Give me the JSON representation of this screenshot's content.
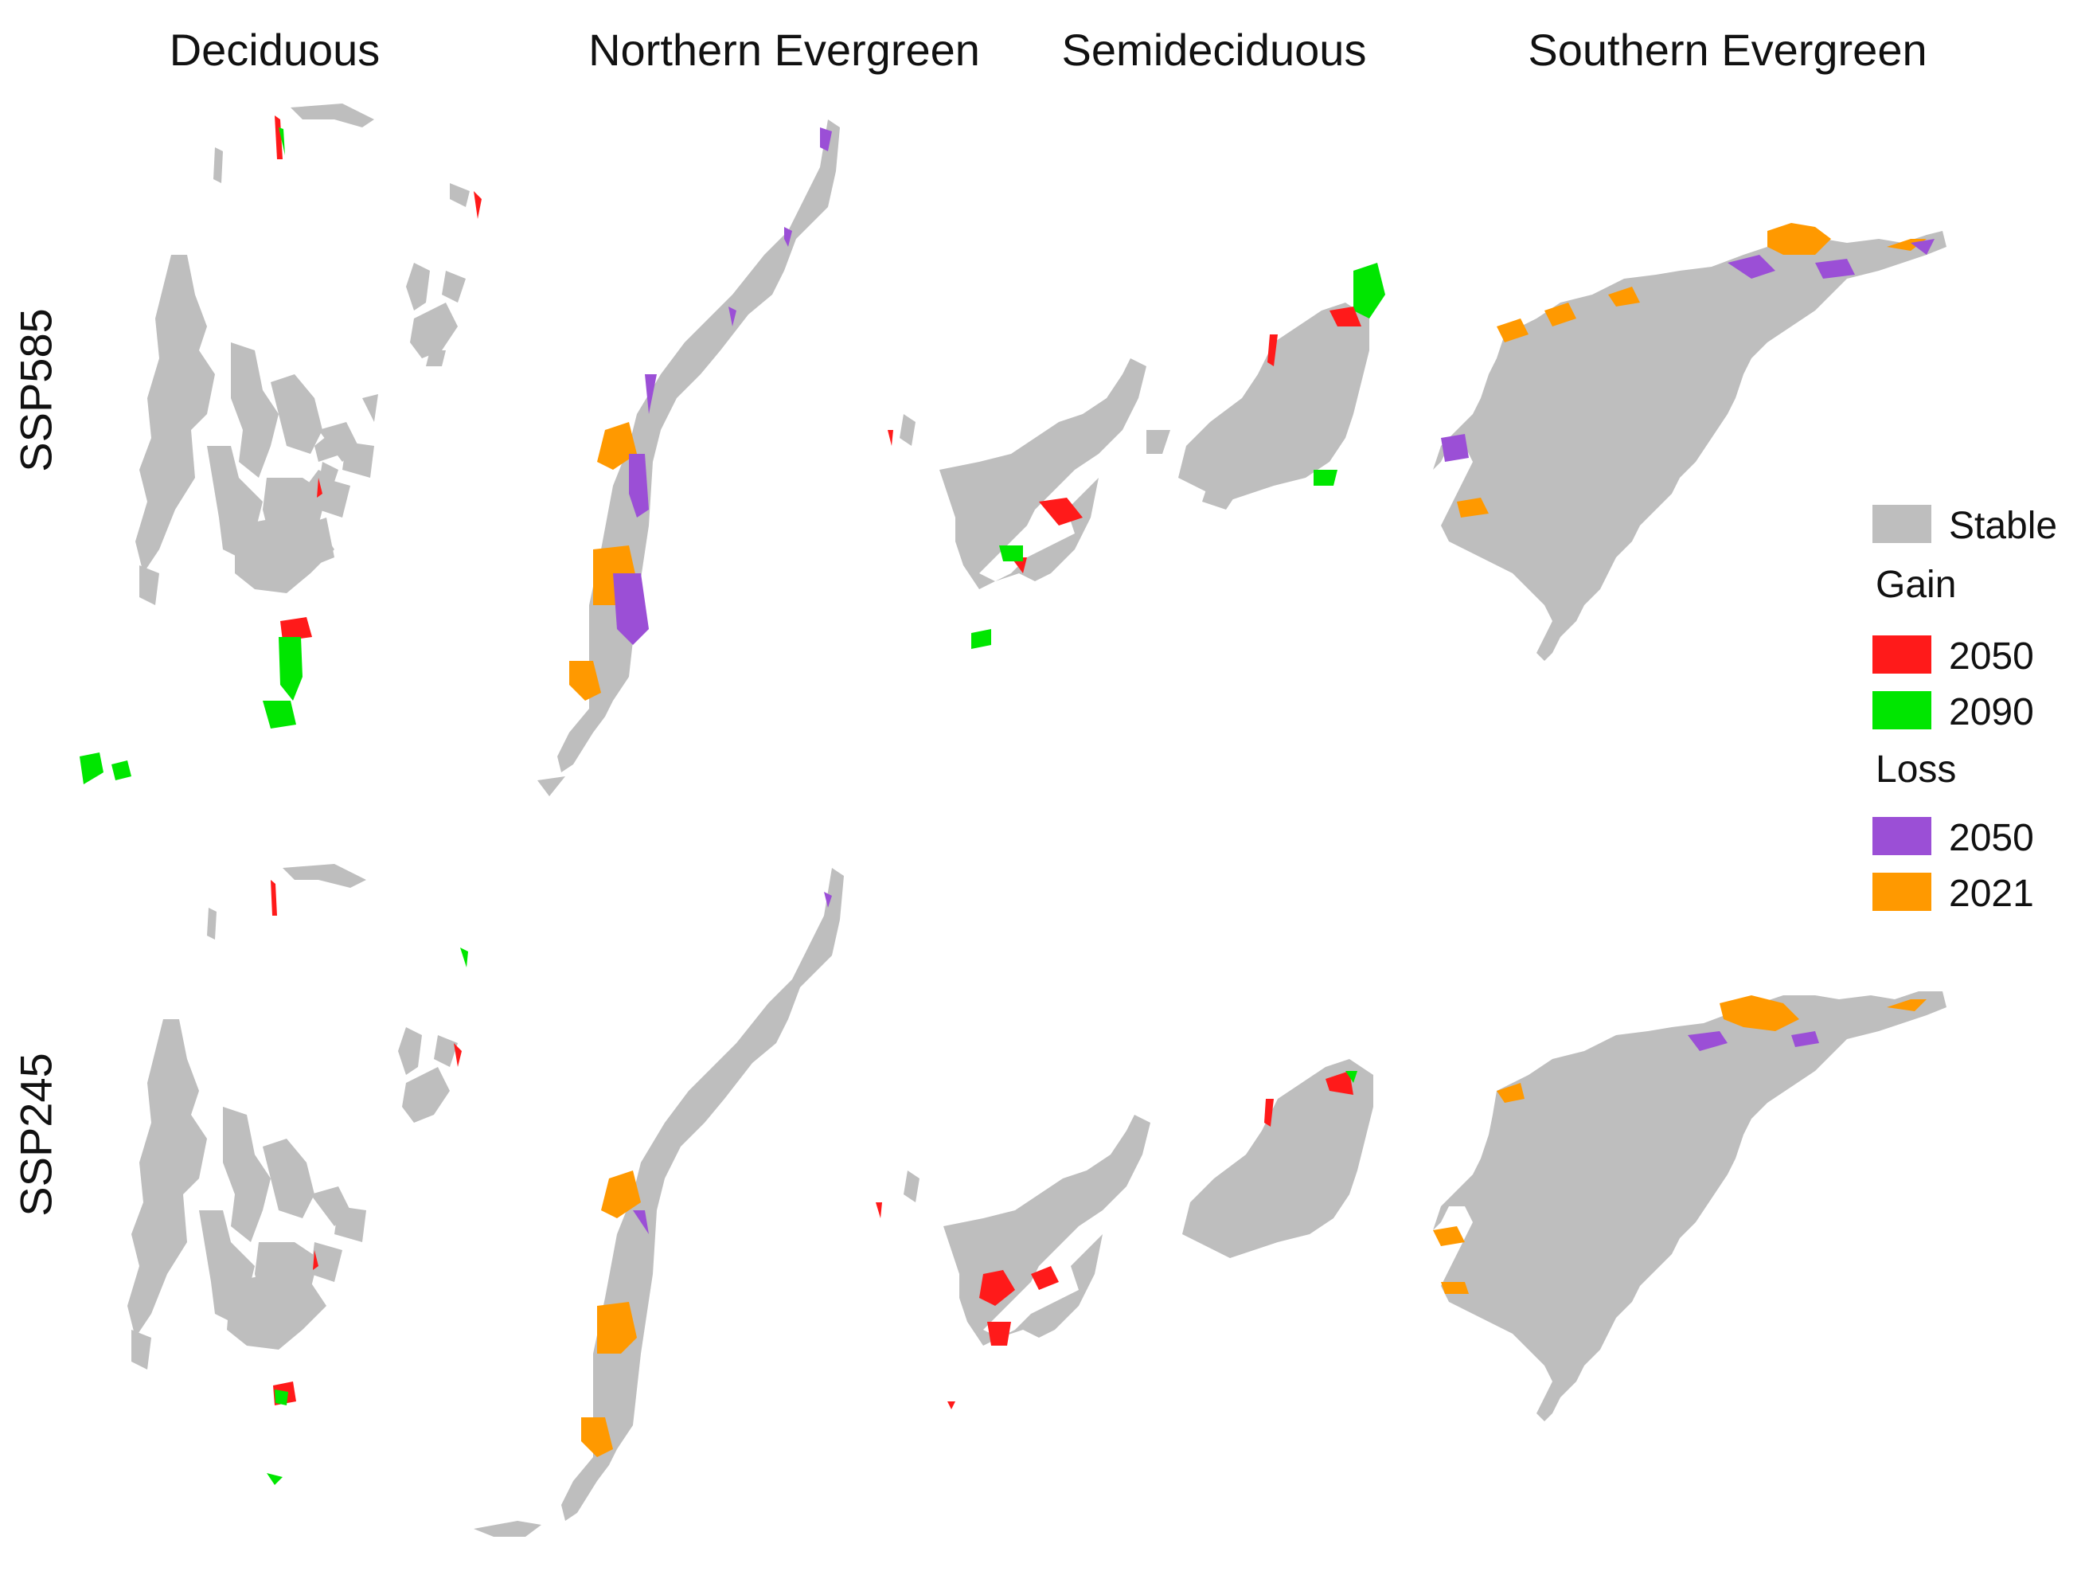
{
  "columns": [
    "Deciduous",
    "Northern Evergreen",
    "Semideciduous",
    "Southern Evergreen"
  ],
  "rows": [
    "SSP585",
    "SSP245"
  ],
  "legend": {
    "stable": {
      "label": "Stable",
      "color": "#bebebe"
    },
    "gain": {
      "title": "Gain",
      "items": [
        {
          "label": "2050",
          "color": "#ff1a1a"
        },
        {
          "label": "2090",
          "color": "#00e600"
        }
      ]
    },
    "loss": {
      "title": "Loss",
      "items": [
        {
          "label": "2050",
          "color": "#9b4fd6"
        },
        {
          "label": "2021",
          "color": "#ff9900"
        }
      ]
    }
  }
}
